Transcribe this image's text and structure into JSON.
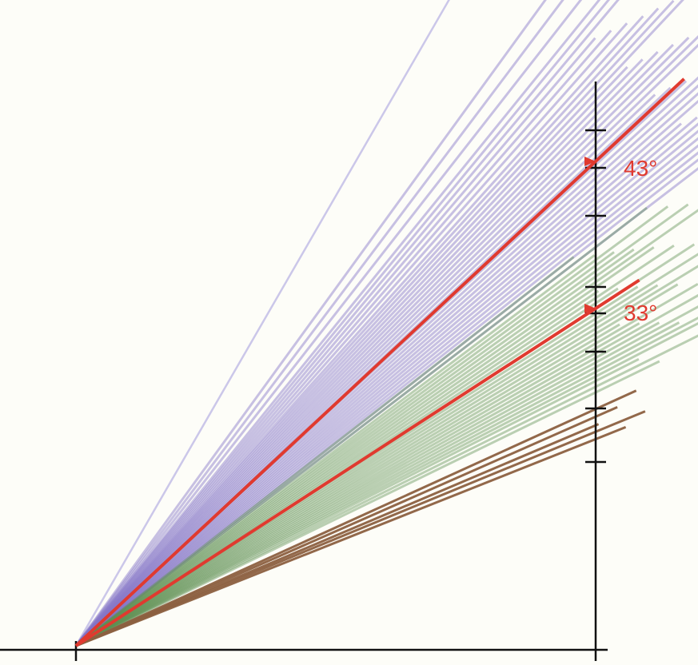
{
  "diagram": {
    "colors": {
      "background": "#fdfdf8",
      "group_a": "#8575c7",
      "group_b": "#5c8f52",
      "group_c": "#8c6040",
      "highlight": "#e03a2f",
      "axes": "#111111"
    },
    "highlight_angles": [
      {
        "degrees": 43,
        "label": "43°"
      },
      {
        "degrees": 33,
        "label": "33°"
      }
    ],
    "group_a_angles": [
      60,
      54,
      53,
      52,
      51,
      50.5,
      50,
      49.5,
      49,
      48.5,
      48,
      47.6,
      47.2,
      46.8,
      46.4,
      46,
      45.6,
      45.2,
      44.8,
      44.4,
      44,
      43.6,
      43.2,
      42.8,
      42.4,
      42,
      41.6,
      41.2,
      40.8,
      40.4,
      40,
      39.6,
      39.2,
      38.8,
      38.4,
      38,
      37.5
    ],
    "group_b_angles": [
      38,
      37.5,
      37,
      36.6,
      36.2,
      35.8,
      35.4,
      35,
      34.6,
      34.2,
      33.8,
      33.4,
      33,
      32.6,
      32.2,
      31.8,
      31.4,
      31,
      30.6,
      30.2,
      29.8,
      29.4,
      29,
      28.6,
      28.2,
      27.8,
      27.4,
      27,
      26.5,
      26
    ],
    "group_c_angles": [
      24.5,
      23.8,
      23,
      22.4,
      21.7
    ]
  }
}
